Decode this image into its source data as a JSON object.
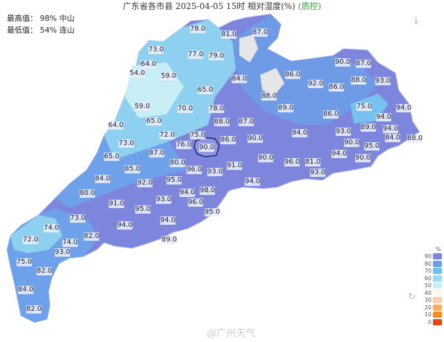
{
  "header": {
    "title": "广东省各市县 2025-04-05 15时 相对湿度(%)",
    "qc_label": "(质控)",
    "max_label": "最高值：  98% 中山",
    "min_label": "最低值：  54% 连山"
  },
  "icons": {
    "download": "download-icon",
    "reset": "restore-icon"
  },
  "map": {
    "region": "广东省",
    "no_data_color": "#e6e6e6",
    "stations": [
      "78.0",
      "81.0",
      "87.0",
      "73.0",
      "77.0",
      "79.0",
      "64.0",
      "54.0",
      "59.0",
      "84.0",
      "86.0",
      "92.0",
      "86.0",
      "88.0",
      "93.0",
      "90.0",
      "87.0",
      "65.0",
      "88.0",
      "59.0",
      "70.0",
      "78.0",
      "89.0",
      "86.0",
      "75.0",
      "94.0",
      "65.0",
      "88.0",
      "87.0",
      "64.0",
      "94.0",
      "93.0",
      "89.0",
      "94.0",
      "94.0",
      "88.0",
      "72.0",
      "75.0",
      "86.0",
      "90.0",
      "76.0",
      "73.0",
      "90.0",
      "90.0",
      "95.0",
      "84.0",
      "65.0",
      "87.0",
      "80.0",
      "85.0",
      "96.0",
      "93.0",
      "91.0",
      "90.0",
      "96.0",
      "81.0",
      "94.0",
      "90.0",
      "93.0",
      "84.0",
      "92.0",
      "95.0",
      "94.0",
      "80.0",
      "94.0",
      "98.0",
      "91.0",
      "93.0",
      "95.0",
      "96.0",
      "95.0",
      "73.0",
      "94.0",
      "94.0",
      "74.0",
      "72.0",
      "74.0",
      "82.0",
      "89.0",
      "93.0",
      "75.0",
      "82.0",
      "84.0",
      "82.0"
    ]
  },
  "legend": {
    "unit": "%",
    "items": [
      {
        "label": "90",
        "color": "#7b83dd"
      },
      {
        "label": "80",
        "color": "#6a9ee8"
      },
      {
        "label": "70",
        "color": "#6ec0ef"
      },
      {
        "label": "60",
        "color": "#95dcef"
      },
      {
        "label": "50",
        "color": "#c9f0f2"
      },
      {
        "label": "40",
        "color": "#f7f7f3"
      },
      {
        "label": "30",
        "color": "#f9cfae"
      },
      {
        "label": "20",
        "color": "#f8ae5c"
      },
      {
        "label": "10",
        "color": "#f58a1f"
      },
      {
        "label": "0",
        "color": "#e0481a"
      }
    ]
  },
  "watermark": "@广州天气"
}
